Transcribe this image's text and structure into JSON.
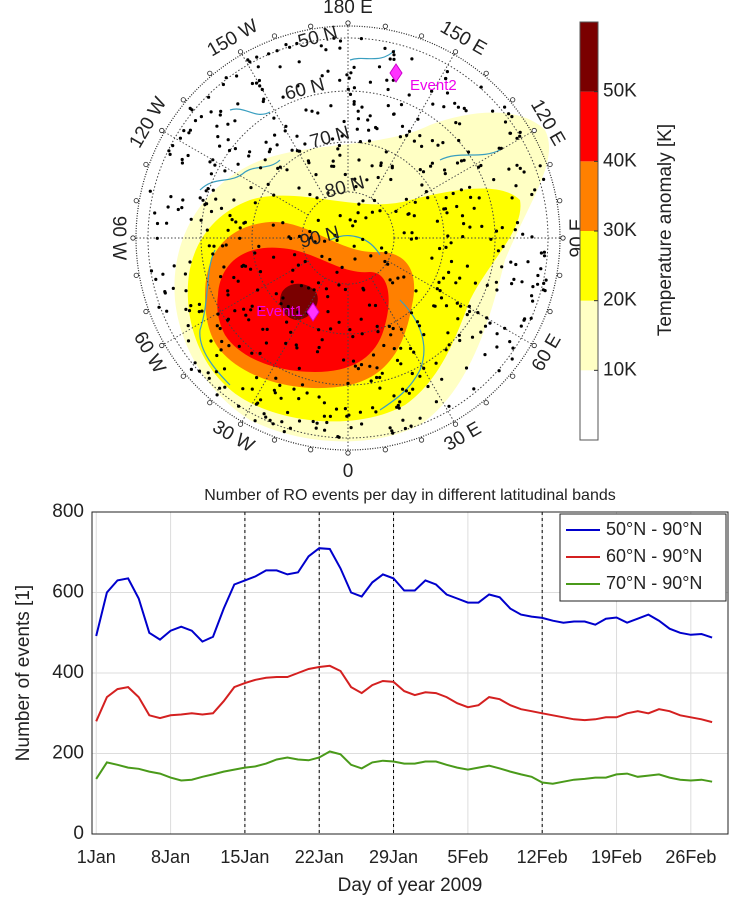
{
  "chart_data": [
    {
      "type": "polar-contour",
      "lat_labels": [
        "50 N",
        "60 N",
        "70 N",
        "80 N",
        "90 N"
      ],
      "lon_labels": [
        "0",
        "30 E",
        "60 E",
        "90 E",
        "120 E",
        "150 E",
        "180 E",
        "150 W",
        "120 W",
        "90 W",
        "60 W",
        "30 W"
      ],
      "events": [
        "Event1",
        "Event2"
      ],
      "colorbar": {
        "label": "Temperature anomaly [K]",
        "lim": [
          0,
          60
        ],
        "levels": [
          0,
          10,
          20,
          30,
          40,
          50,
          60
        ],
        "colors": [
          "#ffffff",
          "#ffffc4",
          "#ffff00",
          "#ff8000",
          "#ff0000",
          "#7a0000"
        ],
        "ticks": [
          {
            "value": 10,
            "label": "10K"
          },
          {
            "value": 20,
            "label": "20K"
          },
          {
            "value": 30,
            "label": "30K"
          },
          {
            "value": 40,
            "label": "40K"
          },
          {
            "value": 50,
            "label": "50K"
          }
        ]
      }
    },
    {
      "type": "line",
      "title": "Number of RO events per day in different latitudinal bands",
      "xlabel": "Day of year 2009",
      "ylabel": "Number of events [1]",
      "x": [
        1,
        2,
        3,
        4,
        5,
        6,
        7,
        8,
        9,
        10,
        11,
        12,
        13,
        14,
        15,
        16,
        17,
        18,
        19,
        20,
        21,
        22,
        23,
        24,
        25,
        26,
        27,
        28,
        29,
        30,
        31,
        32,
        33,
        34,
        35,
        36,
        37,
        38,
        39,
        40,
        41,
        42,
        43,
        44,
        45,
        46,
        47,
        48,
        49,
        50,
        51,
        52,
        53,
        54,
        55,
        56,
        57,
        58,
        59
      ],
      "xlim": [
        0.6,
        60.5
      ],
      "xticks": [
        {
          "value": 1,
          "label": "1Jan"
        },
        {
          "value": 8,
          "label": "8Jan"
        },
        {
          "value": 15,
          "label": "15Jan"
        },
        {
          "value": 22,
          "label": "22Jan"
        },
        {
          "value": 29,
          "label": "29Jan"
        },
        {
          "value": 36,
          "label": "5Feb"
        },
        {
          "value": 43,
          "label": "12Feb"
        },
        {
          "value": 50,
          "label": "19Feb"
        },
        {
          "value": 57,
          "label": "26Feb"
        }
      ],
      "ylim": [
        0,
        800
      ],
      "yticks": [
        0,
        200,
        400,
        600,
        800
      ],
      "grid": true,
      "vlines": [
        15,
        22,
        29,
        43
      ],
      "legend": "upper right",
      "series": [
        {
          "name": "50°N - 90°N",
          "color": "#0000cc",
          "values": [
            492,
            600,
            630,
            635,
            585,
            500,
            483,
            505,
            515,
            505,
            478,
            490,
            560,
            620,
            630,
            640,
            655,
            655,
            645,
            650,
            690,
            710,
            708,
            660,
            600,
            590,
            625,
            645,
            635,
            605,
            605,
            630,
            620,
            595,
            585,
            575,
            575,
            595,
            588,
            560,
            545,
            540,
            537,
            530,
            525,
            528,
            528,
            520,
            535,
            538,
            525,
            535,
            545,
            530,
            510,
            500,
            495,
            497,
            488
          ]
        },
        {
          "name": "60°N - 90°N",
          "color": "#d42020",
          "values": [
            280,
            340,
            360,
            365,
            340,
            295,
            288,
            295,
            297,
            300,
            297,
            300,
            330,
            365,
            375,
            383,
            388,
            390,
            390,
            400,
            410,
            415,
            418,
            405,
            365,
            350,
            370,
            380,
            378,
            355,
            345,
            352,
            350,
            340,
            325,
            315,
            320,
            340,
            335,
            320,
            310,
            305,
            300,
            295,
            290,
            285,
            283,
            285,
            290,
            290,
            300,
            305,
            300,
            310,
            305,
            295,
            290,
            285,
            278
          ]
        },
        {
          "name": "70°N - 90°N",
          "color": "#4a9a1a",
          "values": [
            137,
            178,
            172,
            165,
            162,
            155,
            150,
            140,
            133,
            135,
            142,
            148,
            155,
            160,
            165,
            168,
            175,
            185,
            190,
            185,
            183,
            190,
            205,
            198,
            172,
            163,
            178,
            182,
            180,
            175,
            175,
            180,
            180,
            172,
            165,
            160,
            165,
            170,
            163,
            155,
            148,
            142,
            128,
            125,
            130,
            135,
            137,
            140,
            140,
            148,
            150,
            142,
            145,
            148,
            140,
            135,
            133,
            135,
            130
          ]
        }
      ]
    }
  ]
}
